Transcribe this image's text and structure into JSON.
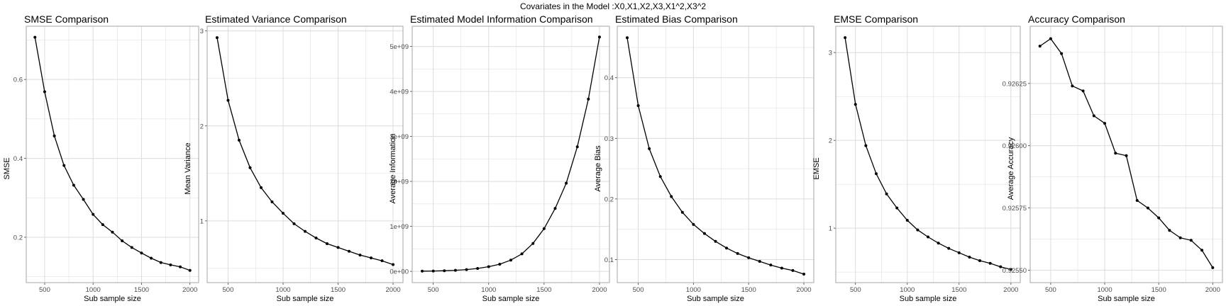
{
  "figure": {
    "title": "Covariates in the Model :X0,X1,X2,X3,X1^2,X3^2"
  },
  "colors": {
    "grid": "#dcdcdc",
    "panel_border": "#a6a6a6",
    "line": "#000000"
  },
  "chart_data": [
    {
      "type": "line",
      "title": "SMSE Comparison",
      "xlabel": "Sub sample size",
      "ylabel": "SMSE",
      "xlim": [
        310,
        2090
      ],
      "ylim": [
        0.085,
        0.735
      ],
      "xticks": [
        500,
        1000,
        1500,
        2000
      ],
      "xtick_labels": [
        "500",
        "1000",
        "1500",
        "2000"
      ],
      "yticks": [
        0.2,
        0.4,
        0.6
      ],
      "ytick_labels": [
        "0.2",
        "0.4",
        "0.6"
      ],
      "x": [
        400,
        500,
        600,
        700,
        800,
        900,
        1000,
        1100,
        1200,
        1300,
        1400,
        1500,
        1600,
        1700,
        1800,
        1900,
        2000
      ],
      "values": [
        0.707,
        0.569,
        0.457,
        0.382,
        0.332,
        0.296,
        0.258,
        0.232,
        0.213,
        0.191,
        0.174,
        0.16,
        0.147,
        0.136,
        0.13,
        0.125,
        0.116
      ]
    },
    {
      "type": "line",
      "title": "Estimated Variance Comparison",
      "xlabel": "Sub sample size",
      "ylabel": "Mean Variance",
      "xlim": [
        310,
        2090
      ],
      "ylim": [
        0.35,
        3.05
      ],
      "xticks": [
        500,
        1000,
        1500,
        2000
      ],
      "xtick_labels": [
        "500",
        "1000",
        "1500",
        "2000"
      ],
      "yticks": [
        1,
        2,
        3
      ],
      "ytick_labels": [
        "1",
        "2",
        "3"
      ],
      "x": [
        400,
        500,
        600,
        700,
        800,
        900,
        1000,
        1100,
        1200,
        1300,
        1400,
        1500,
        1600,
        1700,
        1800,
        1900,
        2000
      ],
      "values": [
        2.93,
        2.27,
        1.85,
        1.56,
        1.35,
        1.2,
        1.08,
        0.97,
        0.89,
        0.82,
        0.76,
        0.72,
        0.68,
        0.64,
        0.61,
        0.58,
        0.54
      ]
    },
    {
      "type": "line",
      "title": "Estimated Model Information Comparison",
      "xlabel": "Sub sample size",
      "ylabel": "Average Information",
      "xlim": [
        310,
        2090
      ],
      "ylim": [
        -250000000.0,
        5450000000.0
      ],
      "xticks": [
        500,
        1000,
        1500,
        2000
      ],
      "xtick_labels": [
        "500",
        "1000",
        "1500",
        "2000"
      ],
      "yticks": [
        0,
        1000000000.0,
        2000000000.0,
        3000000000.0,
        4000000000.0,
        5000000000.0
      ],
      "ytick_labels": [
        "0e+00",
        "1e+09",
        "2e+09",
        "3e+09",
        "4e+09",
        "5e+09"
      ],
      "x": [
        400,
        500,
        600,
        700,
        800,
        900,
        1000,
        1100,
        1200,
        1300,
        1400,
        1500,
        1600,
        1700,
        1800,
        1900,
        2000
      ],
      "values": [
        5000000.0,
        8000000.0,
        14000000.0,
        24000000.0,
        40000000.0,
        65000000.0,
        105000000.0,
        160000000.0,
        250000000.0,
        390000000.0,
        620000000.0,
        950000000.0,
        1400000000.0,
        1960000000.0,
        2770000000.0,
        3830000000.0,
        5210000000.0
      ]
    },
    {
      "type": "line",
      "title": "Estimated Bias Comparison",
      "xlabel": "Sub sample size",
      "ylabel": "Average Bias",
      "xlim": [
        310,
        2090
      ],
      "ylim": [
        0.062,
        0.485
      ],
      "xticks": [
        500,
        1000,
        1500,
        2000
      ],
      "xtick_labels": [
        "500",
        "1000",
        "1500",
        "2000"
      ],
      "yticks": [
        0.1,
        0.2,
        0.3,
        0.4
      ],
      "ytick_labels": [
        "0.1",
        "0.2",
        "0.3",
        "0.4"
      ],
      "x": [
        400,
        500,
        600,
        700,
        800,
        900,
        1000,
        1100,
        1200,
        1300,
        1400,
        1500,
        1600,
        1700,
        1800,
        1900,
        2000
      ],
      "values": [
        0.466,
        0.354,
        0.283,
        0.237,
        0.204,
        0.178,
        0.158,
        0.143,
        0.13,
        0.119,
        0.11,
        0.103,
        0.097,
        0.091,
        0.086,
        0.082,
        0.076
      ]
    },
    {
      "type": "line",
      "title": "EMSE Comparison",
      "xlabel": "Sub sample size",
      "ylabel": "EMSE",
      "xlim": [
        310,
        2090
      ],
      "ylim": [
        0.38,
        3.3
      ],
      "xticks": [
        500,
        1000,
        1500,
        2000
      ],
      "xtick_labels": [
        "500",
        "1000",
        "1500",
        "2000"
      ],
      "yticks": [
        1,
        2,
        3
      ],
      "ytick_labels": [
        "1",
        "2",
        "3"
      ],
      "x": [
        400,
        500,
        600,
        700,
        800,
        900,
        1000,
        1100,
        1200,
        1300,
        1400,
        1500,
        1600,
        1700,
        1800,
        1900,
        2000
      ],
      "values": [
        3.17,
        2.41,
        1.94,
        1.62,
        1.39,
        1.23,
        1.09,
        0.98,
        0.9,
        0.83,
        0.77,
        0.72,
        0.67,
        0.63,
        0.6,
        0.56,
        0.53
      ]
    },
    {
      "type": "line",
      "title": "Accuracy Comparison",
      "xlabel": "Sub sample size",
      "ylabel": "Average Accuracy",
      "xlim": [
        310,
        2090
      ],
      "ylim": [
        0.92545,
        0.92648
      ],
      "xticks": [
        500,
        1000,
        1500,
        2000
      ],
      "xtick_labels": [
        "500",
        "1000",
        "1500",
        "2000"
      ],
      "yticks": [
        0.9255,
        0.92575,
        0.926,
        0.92625
      ],
      "ytick_labels": [
        "0.92550",
        "0.92575",
        "0.92600",
        "0.92625"
      ],
      "x": [
        400,
        500,
        600,
        700,
        800,
        900,
        1000,
        1100,
        1200,
        1300,
        1400,
        1500,
        1600,
        1700,
        1800,
        1900,
        2000
      ],
      "values": [
        0.9264,
        0.92643,
        0.92637,
        0.92624,
        0.92622,
        0.92612,
        0.92609,
        0.92597,
        0.92596,
        0.92578,
        0.92575,
        0.92571,
        0.92566,
        0.92563,
        0.92562,
        0.92558,
        0.92551
      ]
    }
  ]
}
